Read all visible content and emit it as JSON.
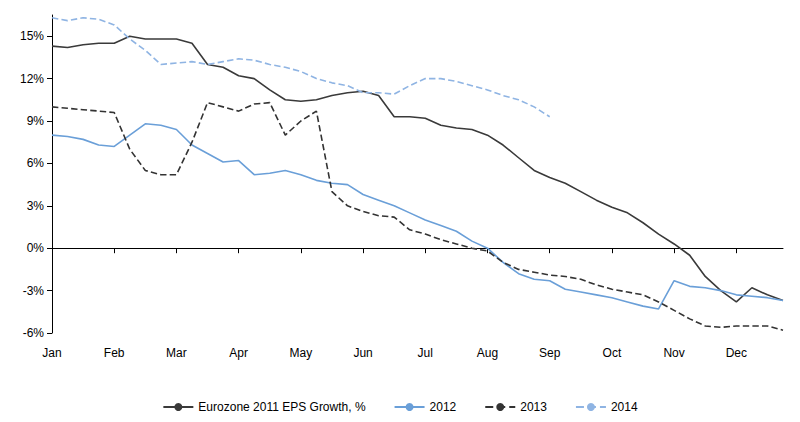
{
  "chart_data": {
    "type": "line",
    "categories": [
      "Jan",
      null,
      null,
      null,
      "Feb",
      null,
      null,
      null,
      "Mar",
      null,
      null,
      null,
      "Apr",
      null,
      null,
      null,
      "May",
      null,
      null,
      null,
      "Jun",
      null,
      null,
      null,
      "Jul",
      null,
      null,
      null,
      "Aug",
      null,
      null,
      null,
      "Sep",
      null,
      null,
      null,
      "Oct",
      null,
      null,
      null,
      "Nov",
      null,
      null,
      null,
      "Dec",
      null,
      null,
      null
    ],
    "series": [
      {
        "name": "Eurozone 2011 EPS Growth, %",
        "color": "#3a3a3a",
        "line_style": "solid",
        "marker": "none",
        "values": [
          14.3,
          14.2,
          14.4,
          14.5,
          14.5,
          15.0,
          14.8,
          14.8,
          14.8,
          14.5,
          13.0,
          12.8,
          12.2,
          12.0,
          11.2,
          10.5,
          10.4,
          10.5,
          10.8,
          11.0,
          11.1,
          10.8,
          9.3,
          9.3,
          9.2,
          8.7,
          8.5,
          8.4,
          8.0,
          7.3,
          6.4,
          5.5,
          5.0,
          4.6,
          4.0,
          3.4,
          2.9,
          2.5,
          1.8,
          1.0,
          0.3,
          -0.5,
          -2.0,
          -3.0,
          -3.8,
          -2.8,
          -3.3,
          -3.7
        ]
      },
      {
        "name": "2012",
        "color": "#6a9fd8",
        "line_style": "solid",
        "marker": "none",
        "values": [
          8.0,
          7.9,
          7.7,
          7.3,
          7.2,
          8.0,
          8.8,
          8.7,
          8.4,
          7.3,
          6.7,
          6.1,
          6.2,
          5.2,
          5.3,
          5.5,
          5.2,
          4.8,
          4.6,
          4.5,
          3.8,
          3.4,
          3.0,
          2.5,
          2.0,
          1.6,
          1.2,
          0.5,
          0.0,
          -1.0,
          -1.8,
          -2.2,
          -2.3,
          -2.9,
          -3.1,
          -3.3,
          -3.5,
          -3.8,
          -4.1,
          -4.3,
          -2.3,
          -2.7,
          -2.8,
          -3.0,
          -3.3,
          -3.4,
          -3.5,
          -3.7
        ]
      },
      {
        "name": "2013",
        "color": "#333333",
        "line_style": "dashed",
        "marker": "none",
        "values": [
          10.0,
          9.9,
          9.8,
          9.7,
          9.6,
          7.0,
          5.5,
          5.2,
          5.2,
          7.5,
          10.3,
          10.0,
          9.7,
          10.2,
          10.3,
          8.0,
          9.0,
          9.7,
          4.0,
          3.0,
          2.6,
          2.3,
          2.2,
          1.3,
          1.0,
          0.6,
          0.3,
          0.0,
          -0.2,
          -1.0,
          -1.5,
          -1.7,
          -1.9,
          -2.0,
          -2.2,
          -2.6,
          -2.9,
          -3.1,
          -3.3,
          -3.8,
          -4.4,
          -5.0,
          -5.5,
          -5.6,
          -5.5,
          -5.5,
          -5.5,
          -5.8
        ]
      },
      {
        "name": "2014",
        "color": "#8fb4e3",
        "line_style": "dashed",
        "marker": "none",
        "values": [
          16.3,
          16.1,
          16.3,
          16.2,
          15.8,
          14.8,
          14.0,
          13.0,
          13.1,
          13.2,
          13.0,
          13.2,
          13.4,
          13.3,
          13.0,
          12.8,
          12.5,
          12.0,
          11.7,
          11.5,
          11.0,
          11.0,
          10.9,
          11.5,
          12.0,
          12.0,
          11.8,
          11.5,
          11.2,
          10.8,
          10.5,
          10.0,
          9.3,
          null,
          null,
          null,
          null,
          null,
          null,
          null,
          null,
          null,
          null,
          null,
          null,
          null,
          null,
          null
        ]
      }
    ],
    "ylim": [
      -6,
      16.5
    ],
    "yticks": [
      {
        "value": -6,
        "label": "-6%"
      },
      {
        "value": -3,
        "label": "-3%"
      },
      {
        "value": 0,
        "label": "0%"
      },
      {
        "value": 3,
        "label": "3%"
      },
      {
        "value": 6,
        "label": "6%"
      },
      {
        "value": 9,
        "label": "9%"
      },
      {
        "value": 12,
        "label": "12%"
      },
      {
        "value": 15,
        "label": "15%"
      }
    ],
    "grid": false,
    "legend": "bottom"
  }
}
